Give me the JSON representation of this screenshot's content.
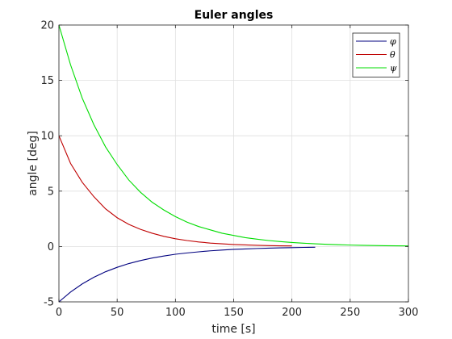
{
  "chart_data": {
    "type": "line",
    "title": "Euler angles",
    "xlabel": "time [s]",
    "ylabel": "angle [deg]",
    "xlim": [
      0,
      300
    ],
    "ylim": [
      -5,
      20
    ],
    "xticks": [
      "0",
      "50",
      "100",
      "150",
      "200",
      "250",
      "300"
    ],
    "yticks": [
      "-5",
      "0",
      "5",
      "10",
      "15",
      "20"
    ],
    "grid": true,
    "legend_position": "top-right",
    "series": [
      {
        "name": "φ",
        "color": "#00007f",
        "x": [
          0,
          10,
          20,
          30,
          40,
          50,
          60,
          70,
          80,
          90,
          100,
          110,
          120,
          130,
          140,
          150,
          160,
          170,
          180,
          190,
          200,
          210,
          220
        ],
        "y": [
          -5.0,
          -4.11,
          -3.38,
          -2.78,
          -2.28,
          -1.88,
          -1.54,
          -1.27,
          -1.04,
          -0.86,
          -0.7,
          -0.58,
          -0.48,
          -0.39,
          -0.32,
          -0.26,
          -0.22,
          -0.18,
          -0.15,
          -0.12,
          -0.1,
          -0.08,
          -0.07
        ]
      },
      {
        "name": "θ",
        "color": "#bf0000",
        "x": [
          0,
          10,
          20,
          30,
          40,
          50,
          60,
          70,
          80,
          90,
          100,
          110,
          120,
          130,
          140,
          150,
          160,
          170,
          180,
          190,
          200
        ],
        "y": [
          10.0,
          7.5,
          5.8,
          4.5,
          3.4,
          2.6,
          2.0,
          1.55,
          1.2,
          0.92,
          0.7,
          0.54,
          0.41,
          0.31,
          0.24,
          0.18,
          0.14,
          0.11,
          0.08,
          0.06,
          0.05
        ]
      },
      {
        "name": "ψ",
        "color": "#00dd00",
        "x": [
          0,
          10,
          20,
          30,
          40,
          50,
          60,
          70,
          80,
          90,
          100,
          110,
          120,
          130,
          140,
          150,
          160,
          170,
          180,
          190,
          200,
          210,
          220,
          230,
          240,
          250,
          260,
          270,
          280,
          290,
          300
        ],
        "y": [
          20.0,
          16.4,
          13.4,
          11.0,
          9.0,
          7.4,
          6.0,
          4.9,
          4.0,
          3.3,
          2.7,
          2.2,
          1.8,
          1.5,
          1.2,
          1.0,
          0.8,
          0.66,
          0.54,
          0.44,
          0.36,
          0.3,
          0.24,
          0.2,
          0.16,
          0.13,
          0.11,
          0.09,
          0.07,
          0.06,
          0.05
        ]
      }
    ]
  }
}
